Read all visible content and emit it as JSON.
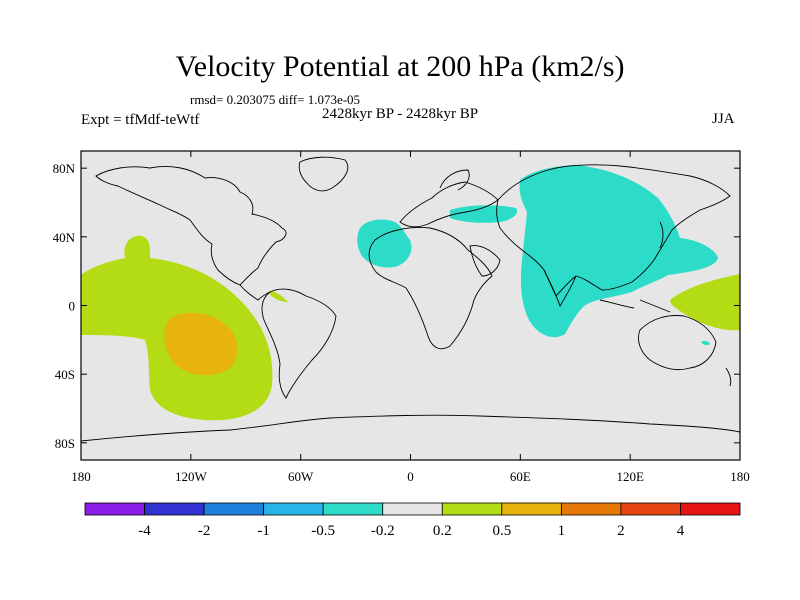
{
  "title": "Velocity Potential at 200 hPa (km2/s)",
  "stats": "rmsd= 0.203075 diff= 1.073e-05",
  "experiment": "Expt = tfMdf-teWtf",
  "period": "2428kyr BP - 2428kyr BP",
  "season": "JJA",
  "map": {
    "lon_range": [
      -180,
      180
    ],
    "lat_range": [
      -90,
      90
    ],
    "lat_ticks": [
      {
        "value": 80,
        "label": "80N"
      },
      {
        "value": 40,
        "label": "40N"
      },
      {
        "value": 0,
        "label": "0"
      },
      {
        "value": -40,
        "label": "40S"
      },
      {
        "value": -80,
        "label": "80S"
      }
    ],
    "lon_ticks": [
      {
        "value": -180,
        "label": "180"
      },
      {
        "value": -120,
        "label": "120W"
      },
      {
        "value": -60,
        "label": "60W"
      },
      {
        "value": 0,
        "label": "0"
      },
      {
        "value": 60,
        "label": "60E"
      },
      {
        "value": 120,
        "label": "120E"
      },
      {
        "value": 180,
        "label": "180"
      }
    ],
    "background_color": "#e6e6e6"
  },
  "colorbar": {
    "colors": [
      "#8a1ee6",
      "#3232d2",
      "#1e82dc",
      "#28b4e6",
      "#2cdcc8",
      "#e6e6e6",
      "#b4dc14",
      "#e6b40a",
      "#e6780a",
      "#e64614",
      "#e61414"
    ],
    "labels": [
      "-4",
      "-2",
      "-1",
      "-0.5",
      "-0.2",
      "0.2",
      "0.5",
      "1",
      "2",
      "4"
    ]
  },
  "regions": [
    {
      "name": "velocity-potential-region-east-pacific-positive",
      "level": "0.2 to 0.5",
      "color": "#b4dc14"
    },
    {
      "name": "velocity-potential-region-southeast-pacific-core",
      "level": "0.5 to 1",
      "color": "#e6b40a"
    },
    {
      "name": "velocity-potential-region-asia-negative",
      "level": "-0.5 to -0.2",
      "color": "#2cdcc8"
    },
    {
      "name": "velocity-potential-region-north-africa-negative",
      "level": "-0.5 to -0.2",
      "color": "#2cdcc8"
    },
    {
      "name": "velocity-potential-region-west-pacific-positive",
      "level": "0.2 to 0.5",
      "color": "#b4dc14"
    }
  ]
}
